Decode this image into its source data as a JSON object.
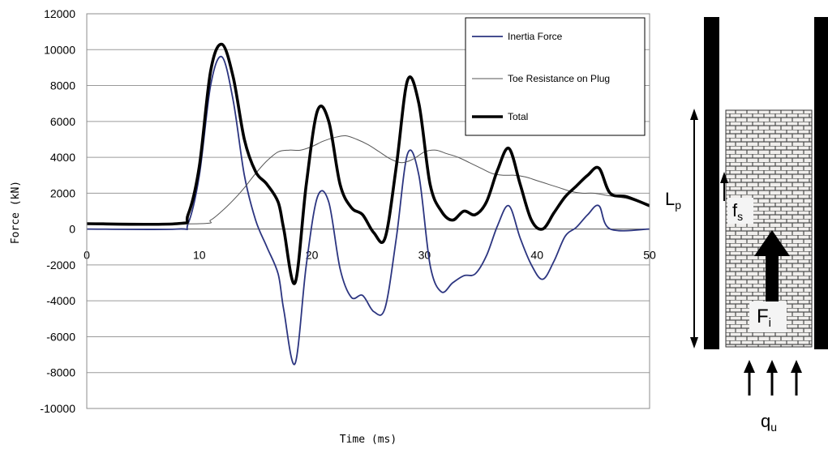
{
  "chart_data": {
    "type": "line",
    "xlabel": "Time (ms)",
    "ylabel": "Force (kN)",
    "xlim": [
      0,
      50
    ],
    "ylim": [
      -10000,
      12000
    ],
    "x_ticks": [
      "0",
      "10",
      "20",
      "30",
      "40",
      "50"
    ],
    "y_ticks": [
      "12000",
      "10000",
      "8000",
      "6000",
      "4000",
      "2000",
      "0",
      "-2000",
      "-4000",
      "-6000",
      "-8000",
      "-10000"
    ],
    "grid": "horizontal",
    "legend_position": "top-right",
    "series": [
      {
        "name": "Inertia Force",
        "color": "#2c3580",
        "x": [
          0,
          8,
          9,
          10,
          11,
          12,
          13,
          14,
          15,
          16,
          17,
          17.5,
          18.5,
          19.5,
          20.5,
          21.5,
          22.5,
          23.5,
          24.5,
          25.5,
          26.5,
          27.5,
          28.5,
          29.5,
          30.5,
          31.5,
          32.5,
          33.5,
          34.5,
          35.5,
          36.5,
          37.5,
          38.5,
          39.5,
          40.5,
          41.5,
          42.5,
          43.5,
          44.5,
          45.5,
          46.5,
          50
        ],
        "y": [
          0,
          0,
          300,
          3000,
          8000,
          9600,
          7200,
          3000,
          500,
          -1000,
          -2500,
          -4500,
          -7500,
          -2000,
          1800,
          1500,
          -2200,
          -3800,
          -3700,
          -4600,
          -4400,
          -500,
          4200,
          3000,
          -2000,
          -3500,
          -3000,
          -2600,
          -2500,
          -1500,
          200,
          1300,
          -500,
          -2000,
          -2800,
          -1800,
          -400,
          100,
          800,
          1300,
          0,
          0
        ]
      },
      {
        "name": "Toe Resistance on Plug",
        "color": "#555555",
        "x": [
          0,
          10,
          11,
          12,
          13,
          14,
          15,
          16,
          17,
          18,
          19,
          20,
          21,
          22,
          23,
          24,
          25,
          26,
          27,
          28,
          29,
          30,
          31,
          32,
          33,
          34,
          35,
          36,
          37,
          38,
          39,
          40,
          41,
          42,
          43,
          44,
          45,
          46,
          47,
          48,
          49,
          50
        ],
        "y": [
          300,
          300,
          500,
          1000,
          1600,
          2300,
          3100,
          3800,
          4300,
          4400,
          4400,
          4600,
          4900,
          5100,
          5200,
          5000,
          4700,
          4300,
          3900,
          3700,
          3900,
          4300,
          4400,
          4200,
          4000,
          3700,
          3400,
          3100,
          3000,
          3000,
          2900,
          2700,
          2500,
          2300,
          2100,
          2000,
          2000,
          1900,
          1800,
          1700,
          1500,
          1300
        ]
      },
      {
        "name": "Total",
        "color": "#000000",
        "x": [
          0,
          8,
          9,
          10,
          11,
          12,
          13,
          14,
          15,
          16,
          17,
          17.5,
          18.5,
          19.5,
          20.5,
          21.5,
          22.5,
          23.5,
          24.5,
          25.5,
          26.5,
          27.5,
          28.5,
          29.5,
          30.5,
          31.5,
          32.5,
          33.5,
          34.5,
          35.5,
          36.5,
          37.5,
          38.5,
          39.5,
          40.5,
          41.5,
          42.5,
          43.5,
          44.5,
          45.5,
          46.5,
          48,
          50
        ],
        "y": [
          300,
          300,
          800,
          3500,
          8800,
          10300,
          8500,
          5000,
          3200,
          2500,
          1500,
          0,
          -3000,
          2500,
          6600,
          6000,
          2500,
          1200,
          800,
          -200,
          -500,
          3500,
          8300,
          7000,
          2500,
          1000,
          500,
          1000,
          800,
          1500,
          3300,
          4500,
          2500,
          500,
          0,
          900,
          1800,
          2400,
          3000,
          3400,
          2000,
          1800,
          1300
        ]
      }
    ]
  },
  "diagram": {
    "length_label": "L",
    "length_subscript": "p",
    "friction_label": "f",
    "friction_subscript": "s",
    "inertia_label": "F",
    "inertia_subscript": "i",
    "pressure_label": "q",
    "pressure_subscript": "u"
  }
}
